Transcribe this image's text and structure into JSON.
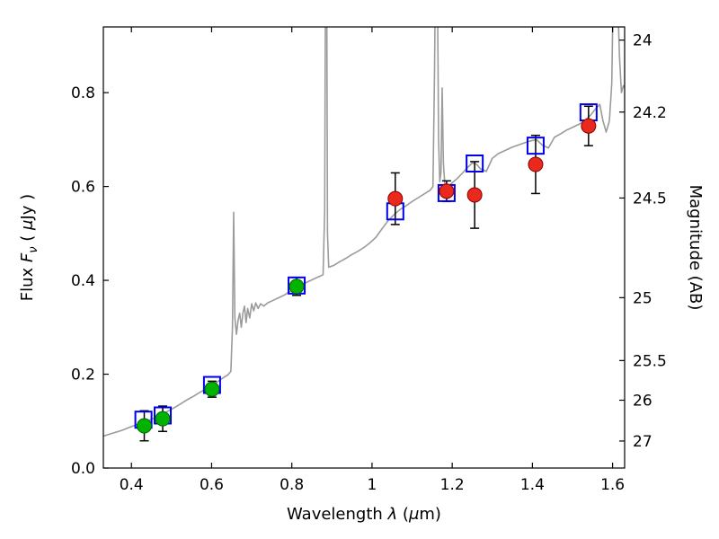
{
  "figure": {
    "background": "#ffffff",
    "description": "Spectral energy distribution of a source: model spectrum with photometric points, flux vs wavelength with AB magnitude axis"
  },
  "chart_data": {
    "type": "line",
    "title": "",
    "xlabel": "Wavelength λ (μm)",
    "ylabel_left": "Flux Fν ( μJy )",
    "ylabel_right": "Magnitude (AB)",
    "xlabel_parts": [
      {
        "t": "Wavelength  ",
        "s": "n"
      },
      {
        "t": "λ",
        "s": "i"
      },
      {
        "t": " (",
        "s": "n"
      },
      {
        "t": "μ",
        "s": "i"
      },
      {
        "t": "m)",
        "s": "n"
      }
    ],
    "ylabel_left_parts": [
      {
        "t": "Flux  ",
        "s": "n"
      },
      {
        "t": "F",
        "s": "i"
      },
      {
        "t": "ν",
        "s": "is"
      },
      {
        "t": "  ( ",
        "s": "n"
      },
      {
        "t": "μ",
        "s": "i"
      },
      {
        "t": "Jy )",
        "s": "n"
      }
    ],
    "xlim": [
      0.33,
      1.63
    ],
    "ylim_flux": [
      0.0,
      0.94
    ],
    "ab_zeropoint_ujy": 23.9,
    "grid": false,
    "legend": "none",
    "x_ticks": [
      {
        "v": 0.4,
        "l": "0.4"
      },
      {
        "v": 0.6,
        "l": "0.6"
      },
      {
        "v": 0.8,
        "l": "0.8"
      },
      {
        "v": 1.0,
        "l": "1"
      },
      {
        "v": 1.2,
        "l": "1.2"
      },
      {
        "v": 1.4,
        "l": "1.4"
      },
      {
        "v": 1.6,
        "l": "1.6"
      }
    ],
    "y_ticks_flux": [
      {
        "v": 0.0,
        "l": "0.0"
      },
      {
        "v": 0.2,
        "l": "0.2"
      },
      {
        "v": 0.4,
        "l": "0.4"
      },
      {
        "v": 0.6,
        "l": "0.6"
      },
      {
        "v": 0.8,
        "l": "0.8"
      }
    ],
    "y_ticks_mag": [
      {
        "v": 24.0,
        "l": "24"
      },
      {
        "v": 24.2,
        "l": "24.2"
      },
      {
        "v": 24.5,
        "l": "24.5"
      },
      {
        "v": 25.0,
        "l": "25"
      },
      {
        "v": 25.5,
        "l": "25.5"
      },
      {
        "v": 26.0,
        "l": "26"
      },
      {
        "v": 27.0,
        "l": "27"
      }
    ],
    "colors": {
      "spectrum": "#9b9b9b",
      "green_points": "#00b300",
      "green_edge": "#006400",
      "red_points": "#e8291c",
      "red_edge": "#8a0000",
      "blue_squares": "#0000ee",
      "error_bars": "#000000",
      "axis": "#000000",
      "background": "#ffffff"
    },
    "series": [
      {
        "name": "model-spectrum",
        "type": "line",
        "color_key": "spectrum",
        "points": [
          [
            0.33,
            0.068
          ],
          [
            0.345,
            0.072
          ],
          [
            0.36,
            0.076
          ],
          [
            0.375,
            0.08
          ],
          [
            0.39,
            0.085
          ],
          [
            0.405,
            0.09
          ],
          [
            0.42,
            0.094
          ],
          [
            0.435,
            0.098
          ],
          [
            0.45,
            0.104
          ],
          [
            0.465,
            0.11
          ],
          [
            0.48,
            0.116
          ],
          [
            0.495,
            0.123
          ],
          [
            0.51,
            0.13
          ],
          [
            0.525,
            0.138
          ],
          [
            0.54,
            0.146
          ],
          [
            0.555,
            0.153
          ],
          [
            0.57,
            0.161
          ],
          [
            0.585,
            0.168
          ],
          [
            0.6,
            0.176
          ],
          [
            0.615,
            0.184
          ],
          [
            0.63,
            0.193
          ],
          [
            0.64,
            0.198
          ],
          [
            0.648,
            0.206
          ],
          [
            0.652,
            0.3
          ],
          [
            0.655,
            0.545
          ],
          [
            0.658,
            0.32
          ],
          [
            0.662,
            0.285
          ],
          [
            0.666,
            0.315
          ],
          [
            0.67,
            0.33
          ],
          [
            0.674,
            0.3
          ],
          [
            0.678,
            0.33
          ],
          [
            0.682,
            0.345
          ],
          [
            0.686,
            0.31
          ],
          [
            0.69,
            0.34
          ],
          [
            0.695,
            0.32
          ],
          [
            0.7,
            0.35
          ],
          [
            0.705,
            0.335
          ],
          [
            0.71,
            0.352
          ],
          [
            0.716,
            0.34
          ],
          [
            0.722,
            0.35
          ],
          [
            0.73,
            0.345
          ],
          [
            0.74,
            0.352
          ],
          [
            0.75,
            0.356
          ],
          [
            0.765,
            0.362
          ],
          [
            0.78,
            0.368
          ],
          [
            0.795,
            0.376
          ],
          [
            0.81,
            0.384
          ],
          [
            0.825,
            0.391
          ],
          [
            0.84,
            0.397
          ],
          [
            0.855,
            0.403
          ],
          [
            0.868,
            0.408
          ],
          [
            0.878,
            0.412
          ],
          [
            0.882,
            0.55
          ],
          [
            0.884,
            1.05
          ],
          [
            0.887,
            1.05
          ],
          [
            0.889,
            0.5
          ],
          [
            0.892,
            0.428
          ],
          [
            0.905,
            0.432
          ],
          [
            0.92,
            0.44
          ],
          [
            0.935,
            0.447
          ],
          [
            0.95,
            0.455
          ],
          [
            0.965,
            0.462
          ],
          [
            0.98,
            0.47
          ],
          [
            0.995,
            0.48
          ],
          [
            1.01,
            0.492
          ],
          [
            1.025,
            0.51
          ],
          [
            1.04,
            0.527
          ],
          [
            1.055,
            0.54
          ],
          [
            1.07,
            0.551
          ],
          [
            1.085,
            0.559
          ],
          [
            1.1,
            0.568
          ],
          [
            1.115,
            0.576
          ],
          [
            1.13,
            0.584
          ],
          [
            1.145,
            0.592
          ],
          [
            1.152,
            0.6
          ],
          [
            1.156,
            0.85
          ],
          [
            1.158,
            1.05
          ],
          [
            1.163,
            1.05
          ],
          [
            1.166,
            0.7
          ],
          [
            1.169,
            0.61
          ],
          [
            1.172,
            0.63
          ],
          [
            1.175,
            0.81
          ],
          [
            1.178,
            0.65
          ],
          [
            1.182,
            0.6
          ],
          [
            1.19,
            0.598
          ],
          [
            1.2,
            0.608
          ],
          [
            1.21,
            0.615
          ],
          [
            1.225,
            0.628
          ],
          [
            1.24,
            0.642
          ],
          [
            1.25,
            0.65
          ],
          [
            1.26,
            0.648
          ],
          [
            1.27,
            0.638
          ],
          [
            1.285,
            0.632
          ],
          [
            1.3,
            0.66
          ],
          [
            1.315,
            0.67
          ],
          [
            1.33,
            0.676
          ],
          [
            1.35,
            0.684
          ],
          [
            1.37,
            0.69
          ],
          [
            1.39,
            0.696
          ],
          [
            1.41,
            0.7
          ],
          [
            1.425,
            0.688
          ],
          [
            1.44,
            0.682
          ],
          [
            1.455,
            0.705
          ],
          [
            1.47,
            0.712
          ],
          [
            1.485,
            0.72
          ],
          [
            1.5,
            0.726
          ],
          [
            1.515,
            0.732
          ],
          [
            1.53,
            0.74
          ],
          [
            1.545,
            0.752
          ],
          [
            1.558,
            0.766
          ],
          [
            1.568,
            0.775
          ],
          [
            1.576,
            0.74
          ],
          [
            1.584,
            0.716
          ],
          [
            1.592,
            0.74
          ],
          [
            1.598,
            0.82
          ],
          [
            1.602,
            1.05
          ],
          [
            1.611,
            1.05
          ],
          [
            1.617,
            0.88
          ],
          [
            1.622,
            0.8
          ],
          [
            1.627,
            0.815
          ],
          [
            1.63,
            0.81
          ]
        ]
      },
      {
        "name": "observed-optical-photometry",
        "type": "scatter",
        "marker": "circle",
        "color_key": "green_points",
        "edge_key": "green_edge",
        "points": [
          {
            "x": 0.432,
            "y": 0.09,
            "yerr": 0.032
          },
          {
            "x": 0.478,
            "y": 0.105,
            "yerr": 0.027
          },
          {
            "x": 0.601,
            "y": 0.168,
            "yerr": 0.017
          },
          {
            "x": 0.812,
            "y": 0.387,
            "yerr": 0.019
          }
        ]
      },
      {
        "name": "observed-infrared-photometry",
        "type": "scatter",
        "marker": "circle",
        "color_key": "red_points",
        "edge_key": "red_edge",
        "points": [
          {
            "x": 1.058,
            "y": 0.574,
            "yerr": 0.055
          },
          {
            "x": 1.186,
            "y": 0.59,
            "yerr": 0.022
          },
          {
            "x": 1.256,
            "y": 0.582,
            "yerr": 0.071
          },
          {
            "x": 1.408,
            "y": 0.647,
            "yerr": 0.062
          },
          {
            "x": 1.54,
            "y": 0.729,
            "yerr": 0.042
          }
        ]
      },
      {
        "name": "model-photometry",
        "type": "scatter",
        "marker": "open-square",
        "color_key": "blue_squares",
        "points": [
          {
            "x": 0.43,
            "y": 0.103
          },
          {
            "x": 0.478,
            "y": 0.112
          },
          {
            "x": 0.601,
            "y": 0.177
          },
          {
            "x": 0.812,
            "y": 0.389
          },
          {
            "x": 1.058,
            "y": 0.547
          },
          {
            "x": 1.186,
            "y": 0.586
          },
          {
            "x": 1.256,
            "y": 0.649
          },
          {
            "x": 1.408,
            "y": 0.687
          },
          {
            "x": 1.54,
            "y": 0.758
          }
        ]
      }
    ]
  }
}
